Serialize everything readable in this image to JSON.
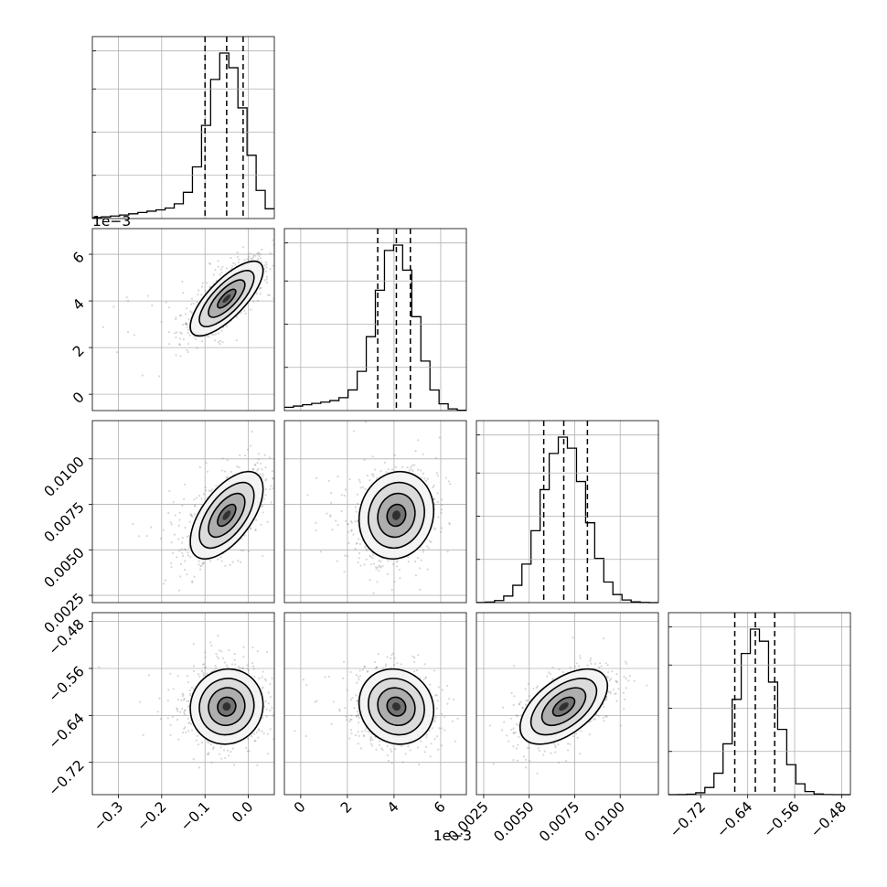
{
  "chart_data": {
    "type": "corner",
    "grid": true,
    "parameters": [
      {
        "range": [
          -0.36,
          0.06
        ],
        "ticks": [
          -0.3,
          -0.2,
          -0.1,
          0.0
        ],
        "tick_labels": [
          "−0.3",
          "−0.2",
          "−0.1",
          "0.0"
        ],
        "offset_label": "",
        "mean": -0.05,
        "sd": 0.042,
        "skew_left": 0.06,
        "quantiles": [
          -0.1,
          -0.05,
          -0.012
        ]
      },
      {
        "range": [
          -0.0007,
          0.0071
        ],
        "ticks": [
          0,
          0.002,
          0.004,
          0.006
        ],
        "tick_labels": [
          "0",
          "2",
          "4",
          "6"
        ],
        "offset_label": "1e−3",
        "mean": 0.0041,
        "sd": 0.0008,
        "skew_left": 0.0007,
        "quantiles": [
          0.0033,
          0.0041,
          0.0047
        ]
      },
      {
        "range": [
          0.0021,
          0.0121
        ],
        "ticks": [
          0.0025,
          0.005,
          0.0075,
          0.01
        ],
        "tick_labels": [
          "0.0025",
          "0.0050",
          "0.0075",
          "0.0100"
        ],
        "offset_label": "",
        "mean": 0.0069,
        "sd": 0.0012,
        "skew_left": 0.0,
        "quantiles": [
          0.0058,
          0.0069,
          0.0082
        ]
      },
      {
        "range": [
          -0.775,
          -0.465
        ],
        "ticks": [
          -0.72,
          -0.64,
          -0.56,
          -0.48
        ],
        "tick_labels": [
          "−0.72",
          "−0.64",
          "−0.56",
          "−0.48"
        ],
        "offset_label": "",
        "mean": -0.625,
        "sd": 0.032,
        "skew_left": 0.0,
        "quantiles": [
          -0.662,
          -0.627,
          -0.594
        ]
      }
    ],
    "correlations": {
      "1_0": 0.75,
      "2_0": 0.6,
      "2_1": 0.1,
      "3_0": 0.05,
      "3_1": -0.1,
      "3_2": 0.55
    },
    "histogram_bins": 20,
    "contour_levels": [
      "0.5sigma",
      "1sigma",
      "1.5sigma",
      "2sigma"
    ]
  }
}
